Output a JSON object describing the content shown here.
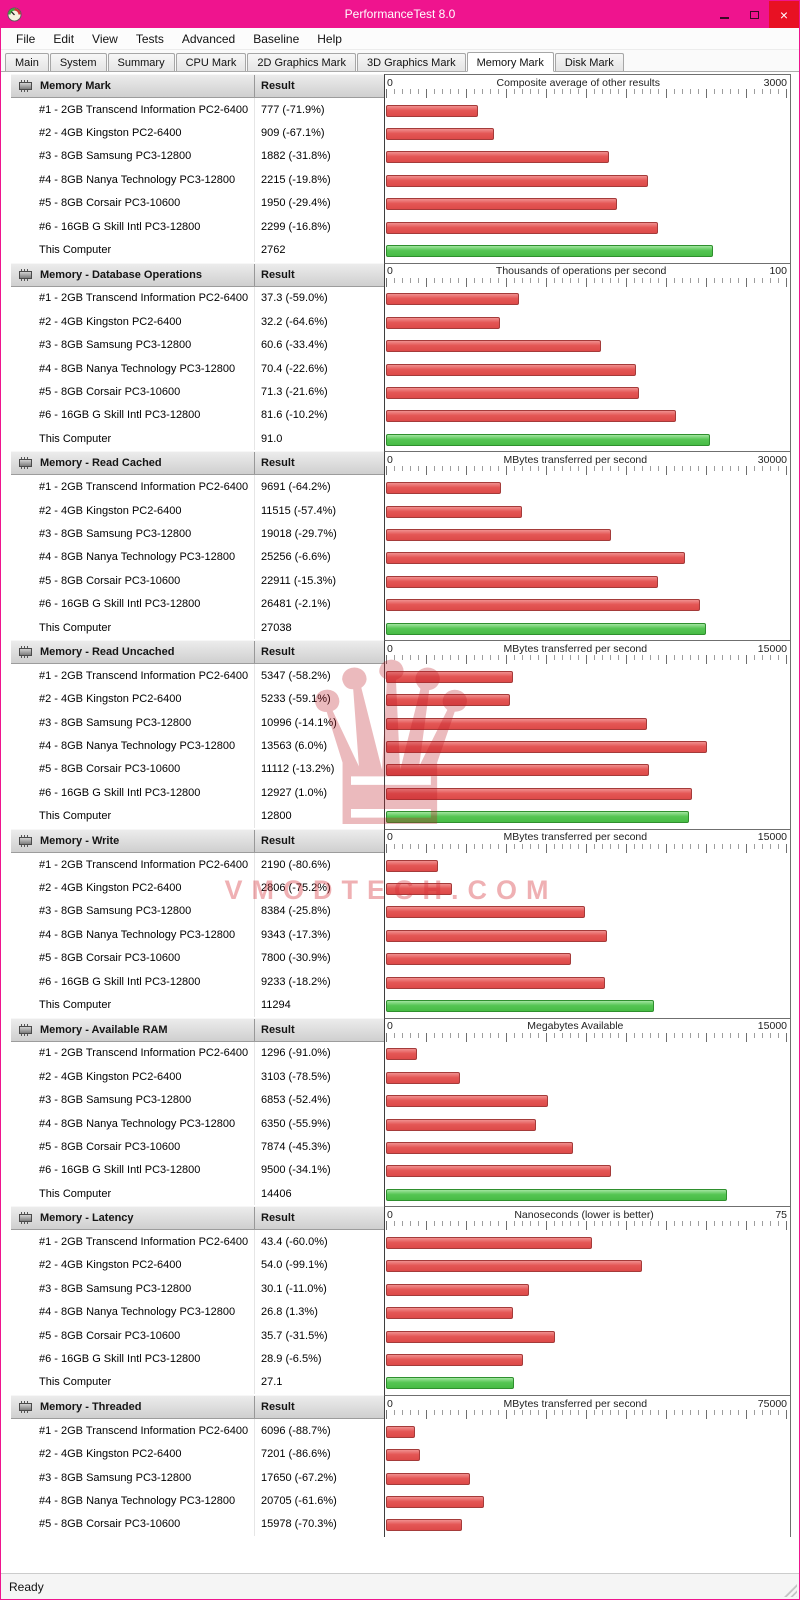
{
  "window": {
    "title": "PerformanceTest 8.0"
  },
  "colors": {
    "titlebar": "#ef148e",
    "close_button": "#e81123",
    "bar_red": "#e45655",
    "bar_green": "#55c553"
  },
  "icons": {
    "close_glyph": "×",
    "app_icon": "speedometer-gauge",
    "section_icon": "memory-chip",
    "watermark_logo": "crest"
  },
  "menu": {
    "items": [
      "File",
      "Edit",
      "View",
      "Tests",
      "Advanced",
      "Baseline",
      "Help"
    ]
  },
  "tabs": {
    "items": [
      "Main",
      "System",
      "Summary",
      "CPU Mark",
      "2D Graphics Mark",
      "3D Graphics Mark",
      "Memory Mark",
      "Disk Mark"
    ],
    "active": "Memory Mark"
  },
  "columns": {
    "result": "Result"
  },
  "status": {
    "text": "Ready"
  },
  "watermark": {
    "text": "VMODTECH.COM"
  },
  "sections": [
    {
      "title": "Memory Mark",
      "axis_label": "Composite average of other results",
      "axis_min": "0",
      "axis_max": 3000,
      "rows": [
        {
          "name": "#1 - 2GB Transcend Information PC2-6400",
          "result": "777 (-71.9%)",
          "value": 777,
          "color": "red"
        },
        {
          "name": "#2 - 4GB Kingston PC2-6400",
          "result": "909 (-67.1%)",
          "value": 909,
          "color": "red"
        },
        {
          "name": "#3 - 8GB Samsung PC3-12800",
          "result": "1882 (-31.8%)",
          "value": 1882,
          "color": "red"
        },
        {
          "name": "#4 - 8GB Nanya Technology PC3-12800",
          "result": "2215 (-19.8%)",
          "value": 2215,
          "color": "red"
        },
        {
          "name": "#5 - 8GB Corsair PC3-10600",
          "result": "1950 (-29.4%)",
          "value": 1950,
          "color": "red"
        },
        {
          "name": "#6 - 16GB G Skill Intl PC3-12800",
          "result": "2299 (-16.8%)",
          "value": 2299,
          "color": "red"
        },
        {
          "name": "This Computer",
          "result": "2762",
          "value": 2762,
          "color": "green"
        }
      ]
    },
    {
      "title": "Memory - Database Operations",
      "axis_label": "Thousands of operations per second",
      "axis_min": "0",
      "axis_max": 100,
      "rows": [
        {
          "name": "#1 - 2GB Transcend Information PC2-6400",
          "result": "37.3 (-59.0%)",
          "value": 37.3,
          "color": "red"
        },
        {
          "name": "#2 - 4GB Kingston PC2-6400",
          "result": "32.2 (-64.6%)",
          "value": 32.2,
          "color": "red"
        },
        {
          "name": "#3 - 8GB Samsung PC3-12800",
          "result": "60.6 (-33.4%)",
          "value": 60.6,
          "color": "red"
        },
        {
          "name": "#4 - 8GB Nanya Technology PC3-12800",
          "result": "70.4 (-22.6%)",
          "value": 70.4,
          "color": "red"
        },
        {
          "name": "#5 - 8GB Corsair PC3-10600",
          "result": "71.3 (-21.6%)",
          "value": 71.3,
          "color": "red"
        },
        {
          "name": "#6 - 16GB G Skill Intl PC3-12800",
          "result": "81.6 (-10.2%)",
          "value": 81.6,
          "color": "red"
        },
        {
          "name": "This Computer",
          "result": "91.0",
          "value": 91.0,
          "color": "green"
        }
      ]
    },
    {
      "title": "Memory - Read Cached",
      "axis_label": "MBytes transferred per second",
      "axis_min": "0",
      "axis_max": 30000,
      "rows": [
        {
          "name": "#1 - 2GB Transcend Information PC2-6400",
          "result": "9691 (-64.2%)",
          "value": 9691,
          "color": "red"
        },
        {
          "name": "#2 - 4GB Kingston PC2-6400",
          "result": "11515 (-57.4%)",
          "value": 11515,
          "color": "red"
        },
        {
          "name": "#3 - 8GB Samsung PC3-12800",
          "result": "19018 (-29.7%)",
          "value": 19018,
          "color": "red"
        },
        {
          "name": "#4 - 8GB Nanya Technology PC3-12800",
          "result": "25256 (-6.6%)",
          "value": 25256,
          "color": "red"
        },
        {
          "name": "#5 - 8GB Corsair PC3-10600",
          "result": "22911 (-15.3%)",
          "value": 22911,
          "color": "red"
        },
        {
          "name": "#6 - 16GB G Skill Intl PC3-12800",
          "result": "26481 (-2.1%)",
          "value": 26481,
          "color": "red"
        },
        {
          "name": "This Computer",
          "result": "27038",
          "value": 27038,
          "color": "green"
        }
      ]
    },
    {
      "title": "Memory - Read Uncached",
      "axis_label": "MBytes transferred per second",
      "axis_min": "0",
      "axis_max": 15000,
      "rows": [
        {
          "name": "#1 - 2GB Transcend Information PC2-6400",
          "result": "5347 (-58.2%)",
          "value": 5347,
          "color": "red"
        },
        {
          "name": "#2 - 4GB Kingston PC2-6400",
          "result": "5233 (-59.1%)",
          "value": 5233,
          "color": "red"
        },
        {
          "name": "#3 - 8GB Samsung PC3-12800",
          "result": "10996 (-14.1%)",
          "value": 10996,
          "color": "red"
        },
        {
          "name": "#4 - 8GB Nanya Technology PC3-12800",
          "result": "13563 (6.0%)",
          "value": 13563,
          "color": "red"
        },
        {
          "name": "#5 - 8GB Corsair PC3-10600",
          "result": "11112 (-13.2%)",
          "value": 11112,
          "color": "red"
        },
        {
          "name": "#6 - 16GB G Skill Intl PC3-12800",
          "result": "12927 (1.0%)",
          "value": 12927,
          "color": "red"
        },
        {
          "name": "This Computer",
          "result": "12800",
          "value": 12800,
          "color": "green"
        }
      ]
    },
    {
      "title": "Memory - Write",
      "axis_label": "MBytes transferred per second",
      "axis_min": "0",
      "axis_max": 15000,
      "rows": [
        {
          "name": "#1 - 2GB Transcend Information PC2-6400",
          "result": "2190 (-80.6%)",
          "value": 2190,
          "color": "red"
        },
        {
          "name": "#2 - 4GB Kingston PC2-6400",
          "result": "2806 (-75.2%)",
          "value": 2806,
          "color": "red"
        },
        {
          "name": "#3 - 8GB Samsung PC3-12800",
          "result": "8384 (-25.8%)",
          "value": 8384,
          "color": "red"
        },
        {
          "name": "#4 - 8GB Nanya Technology PC3-12800",
          "result": "9343 (-17.3%)",
          "value": 9343,
          "color": "red"
        },
        {
          "name": "#5 - 8GB Corsair PC3-10600",
          "result": "7800 (-30.9%)",
          "value": 7800,
          "color": "red"
        },
        {
          "name": "#6 - 16GB G Skill Intl PC3-12800",
          "result": "9233 (-18.2%)",
          "value": 9233,
          "color": "red"
        },
        {
          "name": "This Computer",
          "result": "11294",
          "value": 11294,
          "color": "green"
        }
      ]
    },
    {
      "title": "Memory - Available RAM",
      "axis_label": "Megabytes Available",
      "axis_min": "0",
      "axis_max": 15000,
      "rows": [
        {
          "name": "#1 - 2GB Transcend Information PC2-6400",
          "result": "1296 (-91.0%)",
          "value": 1296,
          "color": "red"
        },
        {
          "name": "#2 - 4GB Kingston PC2-6400",
          "result": "3103 (-78.5%)",
          "value": 3103,
          "color": "red"
        },
        {
          "name": "#3 - 8GB Samsung PC3-12800",
          "result": "6853 (-52.4%)",
          "value": 6853,
          "color": "red"
        },
        {
          "name": "#4 - 8GB Nanya Technology PC3-12800",
          "result": "6350 (-55.9%)",
          "value": 6350,
          "color": "red"
        },
        {
          "name": "#5 - 8GB Corsair PC3-10600",
          "result": "7874 (-45.3%)",
          "value": 7874,
          "color": "red"
        },
        {
          "name": "#6 - 16GB G Skill Intl PC3-12800",
          "result": "9500 (-34.1%)",
          "value": 9500,
          "color": "red"
        },
        {
          "name": "This Computer",
          "result": "14406",
          "value": 14406,
          "color": "green"
        }
      ]
    },
    {
      "title": "Memory - Latency",
      "axis_label": "Nanoseconds (lower is better)",
      "axis_min": "0",
      "axis_max": 75,
      "rows": [
        {
          "name": "#1 - 2GB Transcend Information PC2-6400",
          "result": "43.4 (-60.0%)",
          "value": 43.4,
          "color": "red"
        },
        {
          "name": "#2 - 4GB Kingston PC2-6400",
          "result": "54.0 (-99.1%)",
          "value": 54.0,
          "color": "red"
        },
        {
          "name": "#3 - 8GB Samsung PC3-12800",
          "result": "30.1 (-11.0%)",
          "value": 30.1,
          "color": "red"
        },
        {
          "name": "#4 - 8GB Nanya Technology PC3-12800",
          "result": "26.8 (1.3%)",
          "value": 26.8,
          "color": "red"
        },
        {
          "name": "#5 - 8GB Corsair PC3-10600",
          "result": "35.7 (-31.5%)",
          "value": 35.7,
          "color": "red"
        },
        {
          "name": "#6 - 16GB G Skill Intl PC3-12800",
          "result": "28.9 (-6.5%)",
          "value": 28.9,
          "color": "red"
        },
        {
          "name": "This Computer",
          "result": "27.1",
          "value": 27.1,
          "color": "green"
        }
      ]
    },
    {
      "title": "Memory - Threaded",
      "axis_label": "MBytes transferred per second",
      "axis_min": "0",
      "axis_max": 75000,
      "rows": [
        {
          "name": "#1 - 2GB Transcend Information PC2-6400",
          "result": "6096 (-88.7%)",
          "value": 6096,
          "color": "red"
        },
        {
          "name": "#2 - 4GB Kingston PC2-6400",
          "result": "7201 (-86.6%)",
          "value": 7201,
          "color": "red"
        },
        {
          "name": "#3 - 8GB Samsung PC3-12800",
          "result": "17650 (-67.2%)",
          "value": 17650,
          "color": "red"
        },
        {
          "name": "#4 - 8GB Nanya Technology PC3-12800",
          "result": "20705 (-61.6%)",
          "value": 20705,
          "color": "red"
        },
        {
          "name": "#5 - 8GB Corsair PC3-10600",
          "result": "15978 (-70.3%)",
          "value": 15978,
          "color": "red"
        }
      ]
    }
  ]
}
